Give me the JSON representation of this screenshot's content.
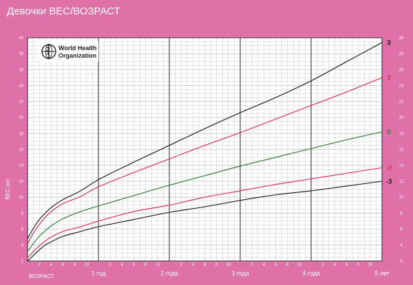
{
  "page": {
    "title": "Девочки ВЕС/ВОЗРАСТ"
  },
  "logo": {
    "line1": "World Health",
    "line2": "Organization"
  },
  "colors": {
    "background": "#e070a8",
    "plot": "#ffffff",
    "grid_minor": "#bcbcbc",
    "grid_major": "#333333",
    "sd3": "#222222",
    "sd2": "#d8325f",
    "sd0": "#2f7d3a"
  },
  "chart_data": {
    "type": "line",
    "title": "Девочки ВЕС/ВОЗРАСТ",
    "xlabel": "ВОЗРАСТ",
    "ylabel": "ВЕС (кг)",
    "xlim": [
      0,
      60
    ],
    "ylim": [
      2,
      30
    ],
    "x_units": "months",
    "y_ticks": [
      2,
      4,
      6,
      8,
      10,
      12,
      14,
      16,
      18,
      20,
      22,
      24,
      26,
      28,
      30
    ],
    "x_month_ticks": [
      "2",
      "4",
      "6",
      "8",
      "10"
    ],
    "x_year_labels": [
      {
        "month": 12,
        "label": "1 год"
      },
      {
        "month": 24,
        "label": "2 года"
      },
      {
        "month": 36,
        "label": "3 года"
      },
      {
        "month": 48,
        "label": "4 года"
      },
      {
        "month": 60,
        "label": "5 лет"
      }
    ],
    "grid": true,
    "x": [
      0,
      1,
      2,
      3,
      4,
      6,
      9,
      12,
      18,
      24,
      30,
      36,
      42,
      48,
      54,
      60
    ],
    "series": [
      {
        "name": "3",
        "color": "#222222",
        "values": [
          4.8,
          6.1,
          7.2,
          8.0,
          8.7,
          9.7,
          10.8,
          12.2,
          14.4,
          16.5,
          18.6,
          20.6,
          22.5,
          24.6,
          27.0,
          29.4
        ]
      },
      {
        "name": "2",
        "color": "#d8325f",
        "values": [
          4.2,
          5.5,
          6.6,
          7.5,
          8.2,
          9.2,
          10.1,
          11.3,
          13.1,
          14.8,
          16.5,
          18.1,
          19.8,
          21.5,
          23.2,
          25.0
        ]
      },
      {
        "name": "0",
        "color": "#2f7d3a",
        "values": [
          3.2,
          4.2,
          5.1,
          5.8,
          6.4,
          7.3,
          8.2,
          8.9,
          10.2,
          11.5,
          12.7,
          13.9,
          15.0,
          16.1,
          17.2,
          18.2
        ]
      },
      {
        "name": "-2",
        "color": "#d8325f",
        "values": [
          2.4,
          3.2,
          3.9,
          4.5,
          5.0,
          5.7,
          6.3,
          7.0,
          8.2,
          9.0,
          10.0,
          10.8,
          11.6,
          12.3,
          13.0,
          13.7
        ]
      },
      {
        "name": "-3",
        "color": "#222222",
        "values": [
          2.0,
          2.7,
          3.4,
          4.0,
          4.4,
          5.1,
          5.7,
          6.3,
          7.2,
          8.1,
          8.8,
          9.6,
          10.3,
          10.8,
          11.4,
          12.0
        ]
      }
    ]
  }
}
